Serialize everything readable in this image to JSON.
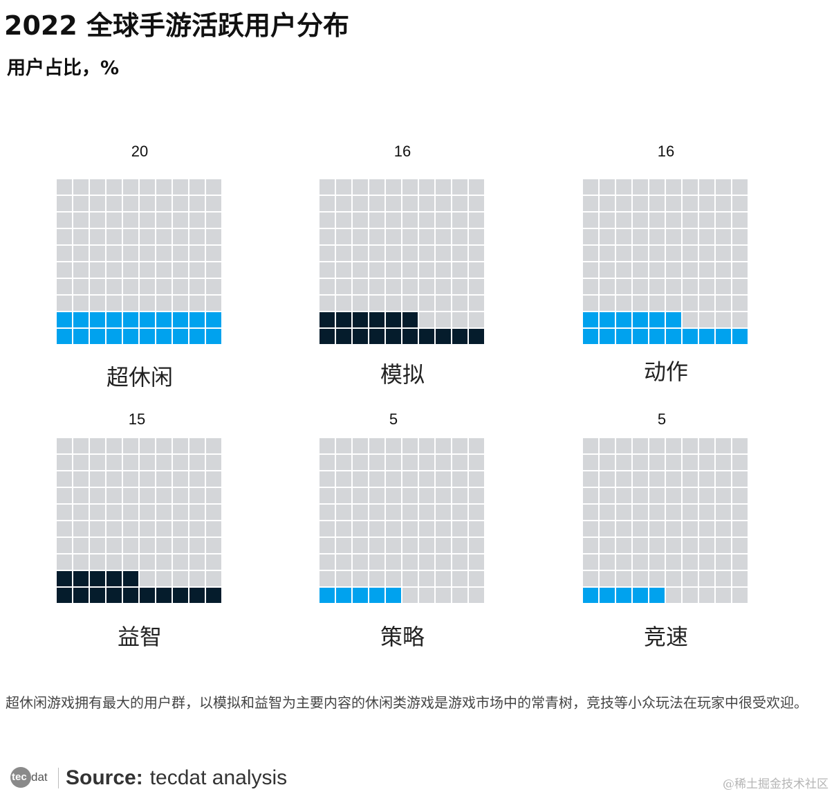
{
  "title": "2022 全球手游活跃用户分布",
  "subtitle": "用户占比，%",
  "chart_data": {
    "type": "waffle",
    "unit": "%",
    "grid": "10x10",
    "colors": {
      "empty": "#d4d6d9",
      "blue": "#00a2ee",
      "dark": "#051c2c"
    },
    "panels": [
      {
        "label": "超休闲",
        "value": 20,
        "value_text": "20",
        "color": "#00a2ee"
      },
      {
        "label": "模拟",
        "value": 16,
        "value_text": "16",
        "color": "#051c2c"
      },
      {
        "label": "动作",
        "value": 16,
        "value_text": "16",
        "color": "#00a2ee"
      },
      {
        "label": "益智",
        "value": 15,
        "value_text": "15",
        "color": "#051c2c"
      },
      {
        "label": "策略",
        "value": 5,
        "value_text": "5",
        "color": "#00a2ee"
      },
      {
        "label": "竞速",
        "value": 5,
        "value_text": "5",
        "color": "#00a2ee"
      }
    ]
  },
  "footnote": "超休闲游戏拥有最大的用户群，以模拟和益智为主要内容的休闲类游戏是游戏市场中的常青树，竞技等小众玩法在玩家中很受欢迎。",
  "source": {
    "logo_text": "tecdat",
    "logo_part1": "tec",
    "logo_part2": "dat",
    "bold": "Source:",
    "text": "tecdat analysis"
  },
  "watermark": "@稀土掘金技术社区"
}
